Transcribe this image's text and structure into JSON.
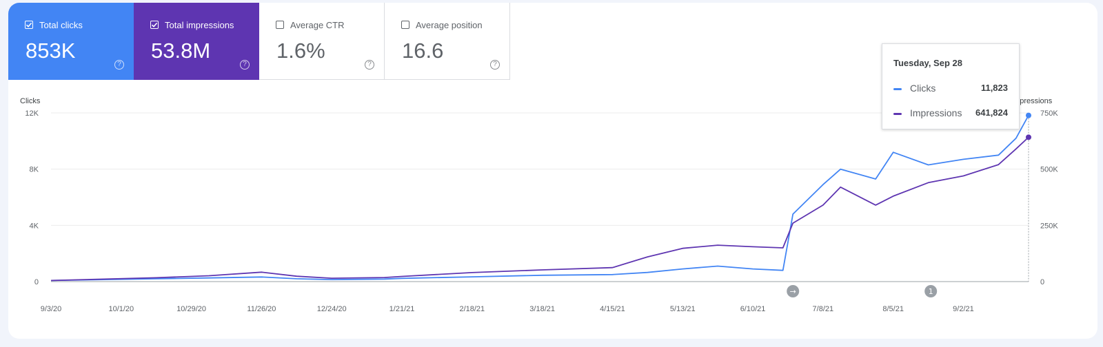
{
  "metrics": [
    {
      "label": "Total clicks",
      "value": "853K",
      "checked": true
    },
    {
      "label": "Total impressions",
      "value": "53.8M",
      "checked": true
    },
    {
      "label": "Average CTR",
      "value": "1.6%",
      "checked": false
    },
    {
      "label": "Average position",
      "value": "16.6",
      "checked": false
    }
  ],
  "tooltip": {
    "date": "Tuesday, Sep 28",
    "rows": [
      {
        "name": "Clicks",
        "value": "11,823",
        "color": "#4285f4"
      },
      {
        "name": "Impressions",
        "value": "641,824",
        "color": "#5e35b1"
      }
    ]
  },
  "annotations": [
    {
      "icon": "arrow-right-icon",
      "glyph": "→",
      "date": "6/26/21"
    },
    {
      "icon": "annotation-count-icon",
      "glyph": "1",
      "date": "8/20/21"
    }
  ],
  "chart_data": {
    "type": "line",
    "x_start": "9/3/20",
    "x_end": "9/28/21",
    "xlabel": "",
    "y_left": {
      "label": "Clicks",
      "range": [
        0,
        12000
      ],
      "ticks": [
        "0",
        "4K",
        "8K",
        "12K"
      ]
    },
    "y_right": {
      "label": "Impressions",
      "range": [
        0,
        750000
      ],
      "ticks": [
        "0",
        "250K",
        "500K",
        "750K"
      ]
    },
    "x_ticks": [
      "9/3/20",
      "10/1/20",
      "10/29/20",
      "11/26/20",
      "12/24/20",
      "1/21/21",
      "2/18/21",
      "3/18/21",
      "4/15/21",
      "5/13/21",
      "6/10/21",
      "7/8/21",
      "8/5/21",
      "9/2/21"
    ],
    "grid": true,
    "series": [
      {
        "name": "Clicks",
        "axis": "left",
        "color": "#4285f4",
        "points": [
          [
            "9/3/20",
            80
          ],
          [
            "9/24/20",
            140
          ],
          [
            "10/15/20",
            200
          ],
          [
            "11/5/20",
            260
          ],
          [
            "11/26/20",
            330
          ],
          [
            "12/10/20",
            200
          ],
          [
            "12/24/20",
            140
          ],
          [
            "1/14/21",
            180
          ],
          [
            "1/21/21",
            230
          ],
          [
            "2/18/21",
            340
          ],
          [
            "3/18/21",
            450
          ],
          [
            "4/15/21",
            500
          ],
          [
            "4/29/21",
            650
          ],
          [
            "5/13/21",
            900
          ],
          [
            "5/27/21",
            1100
          ],
          [
            "6/10/21",
            900
          ],
          [
            "6/22/21",
            800
          ],
          [
            "6/26/21",
            4800
          ],
          [
            "7/8/21",
            6900
          ],
          [
            "7/15/21",
            8000
          ],
          [
            "7/29/21",
            7300
          ],
          [
            "8/5/21",
            9200
          ],
          [
            "8/19/21",
            8300
          ],
          [
            "9/2/21",
            8700
          ],
          [
            "9/16/21",
            9000
          ],
          [
            "9/23/21",
            10200
          ],
          [
            "9/28/21",
            11823
          ]
        ]
      },
      {
        "name": "Impressions",
        "axis": "right",
        "color": "#5e35b1",
        "points": [
          [
            "9/3/20",
            5000
          ],
          [
            "9/24/20",
            11000
          ],
          [
            "10/15/20",
            17000
          ],
          [
            "11/5/20",
            26000
          ],
          [
            "11/26/20",
            42000
          ],
          [
            "12/10/20",
            24000
          ],
          [
            "12/24/20",
            15000
          ],
          [
            "1/14/21",
            18000
          ],
          [
            "1/21/21",
            23000
          ],
          [
            "2/18/21",
            40000
          ],
          [
            "3/18/21",
            52000
          ],
          [
            "4/15/21",
            62000
          ],
          [
            "4/29/21",
            110000
          ],
          [
            "5/13/21",
            148000
          ],
          [
            "5/27/21",
            162000
          ],
          [
            "6/10/21",
            155000
          ],
          [
            "6/22/21",
            150000
          ],
          [
            "6/26/21",
            260000
          ],
          [
            "7/8/21",
            340000
          ],
          [
            "7/15/21",
            420000
          ],
          [
            "7/29/21",
            340000
          ],
          [
            "8/5/21",
            380000
          ],
          [
            "8/19/21",
            440000
          ],
          [
            "9/2/21",
            470000
          ],
          [
            "9/16/21",
            520000
          ],
          [
            "9/23/21",
            590000
          ],
          [
            "9/28/21",
            641824
          ]
        ]
      }
    ]
  }
}
